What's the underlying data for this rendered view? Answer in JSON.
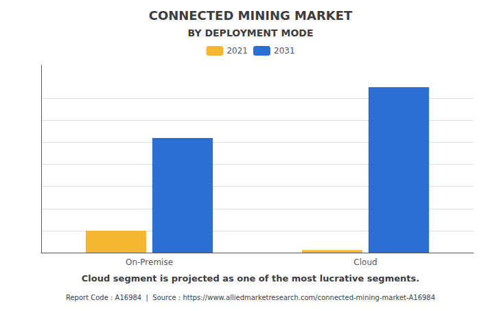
{
  "chart_data": {
    "type": "bar",
    "title": "CONNECTED MINING MARKET",
    "subtitle": "BY DEPLOYMENT MODE",
    "annotation": "Cloud segment is projected as one of the most lucrative segments.",
    "source": "Report Code : A16984  |  Source : https://www.alliedmarketresearch.com/connected-mining-market-A16984",
    "categories": [
      "On-Premise",
      "Cloud"
    ],
    "series": [
      {
        "name": "2021",
        "color": "#F5B731",
        "values": [
          1.0,
          0.12
        ]
      },
      {
        "name": "2031",
        "color": "#2B6FD4",
        "values": [
          5.2,
          7.5
        ]
      }
    ],
    "ylim": [
      0,
      8.5
    ],
    "yticks": [
      0,
      1,
      2,
      3,
      4,
      5,
      6,
      7
    ],
    "grid": true,
    "legend": "top",
    "tick_labels": "x"
  }
}
